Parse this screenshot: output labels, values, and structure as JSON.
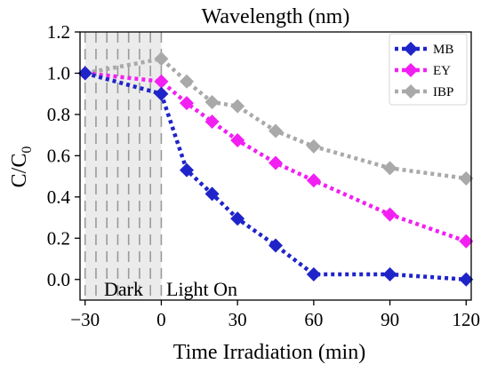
{
  "chart_data": {
    "type": "line",
    "title": "Wavelength (nm)",
    "xlabel": "Time Irradiation (min)",
    "ylabel_main": "C/C",
    "ylabel_sub": "0",
    "xlim": [
      -32,
      122
    ],
    "ylim": [
      -0.1,
      1.2
    ],
    "xticks": [
      -30,
      0,
      30,
      60,
      90,
      120
    ],
    "xtick_labels": [
      "−30",
      "0",
      "30",
      "60",
      "90",
      "120"
    ],
    "yticks": [
      0.0,
      0.2,
      0.4,
      0.6,
      0.8,
      1.0,
      1.2
    ],
    "ytick_labels": [
      "0.0",
      "0.2",
      "0.4",
      "0.6",
      "0.8",
      "1.0",
      "1.2"
    ],
    "legend_position": "top-right",
    "grid": false,
    "dark_region": {
      "x_start": -30,
      "x_end": 0,
      "label": "Dark",
      "fill": "#ebebeb",
      "dash_color": "#9a9a9a"
    },
    "light_label": "Light On",
    "series": [
      {
        "name": "MB",
        "color": "#1f24c9",
        "marker": "diamond",
        "x": [
          -30,
          0,
          10,
          20,
          30,
          45,
          60,
          90,
          120
        ],
        "y": [
          1.0,
          0.9,
          0.53,
          0.415,
          0.295,
          0.165,
          0.025,
          0.025,
          0.0
        ]
      },
      {
        "name": "EY",
        "color": "#f21ff2",
        "marker": "diamond",
        "x": [
          -30,
          0,
          10,
          20,
          30,
          45,
          60,
          90,
          120
        ],
        "y": [
          1.0,
          0.96,
          0.855,
          0.765,
          0.675,
          0.565,
          0.48,
          0.315,
          0.185
        ]
      },
      {
        "name": "IBP",
        "color": "#a9a9a9",
        "marker": "diamond",
        "x": [
          -30,
          0,
          10,
          20,
          30,
          45,
          60,
          90,
          120
        ],
        "y": [
          1.0,
          1.07,
          0.96,
          0.86,
          0.84,
          0.72,
          0.645,
          0.54,
          0.49
        ]
      }
    ]
  }
}
